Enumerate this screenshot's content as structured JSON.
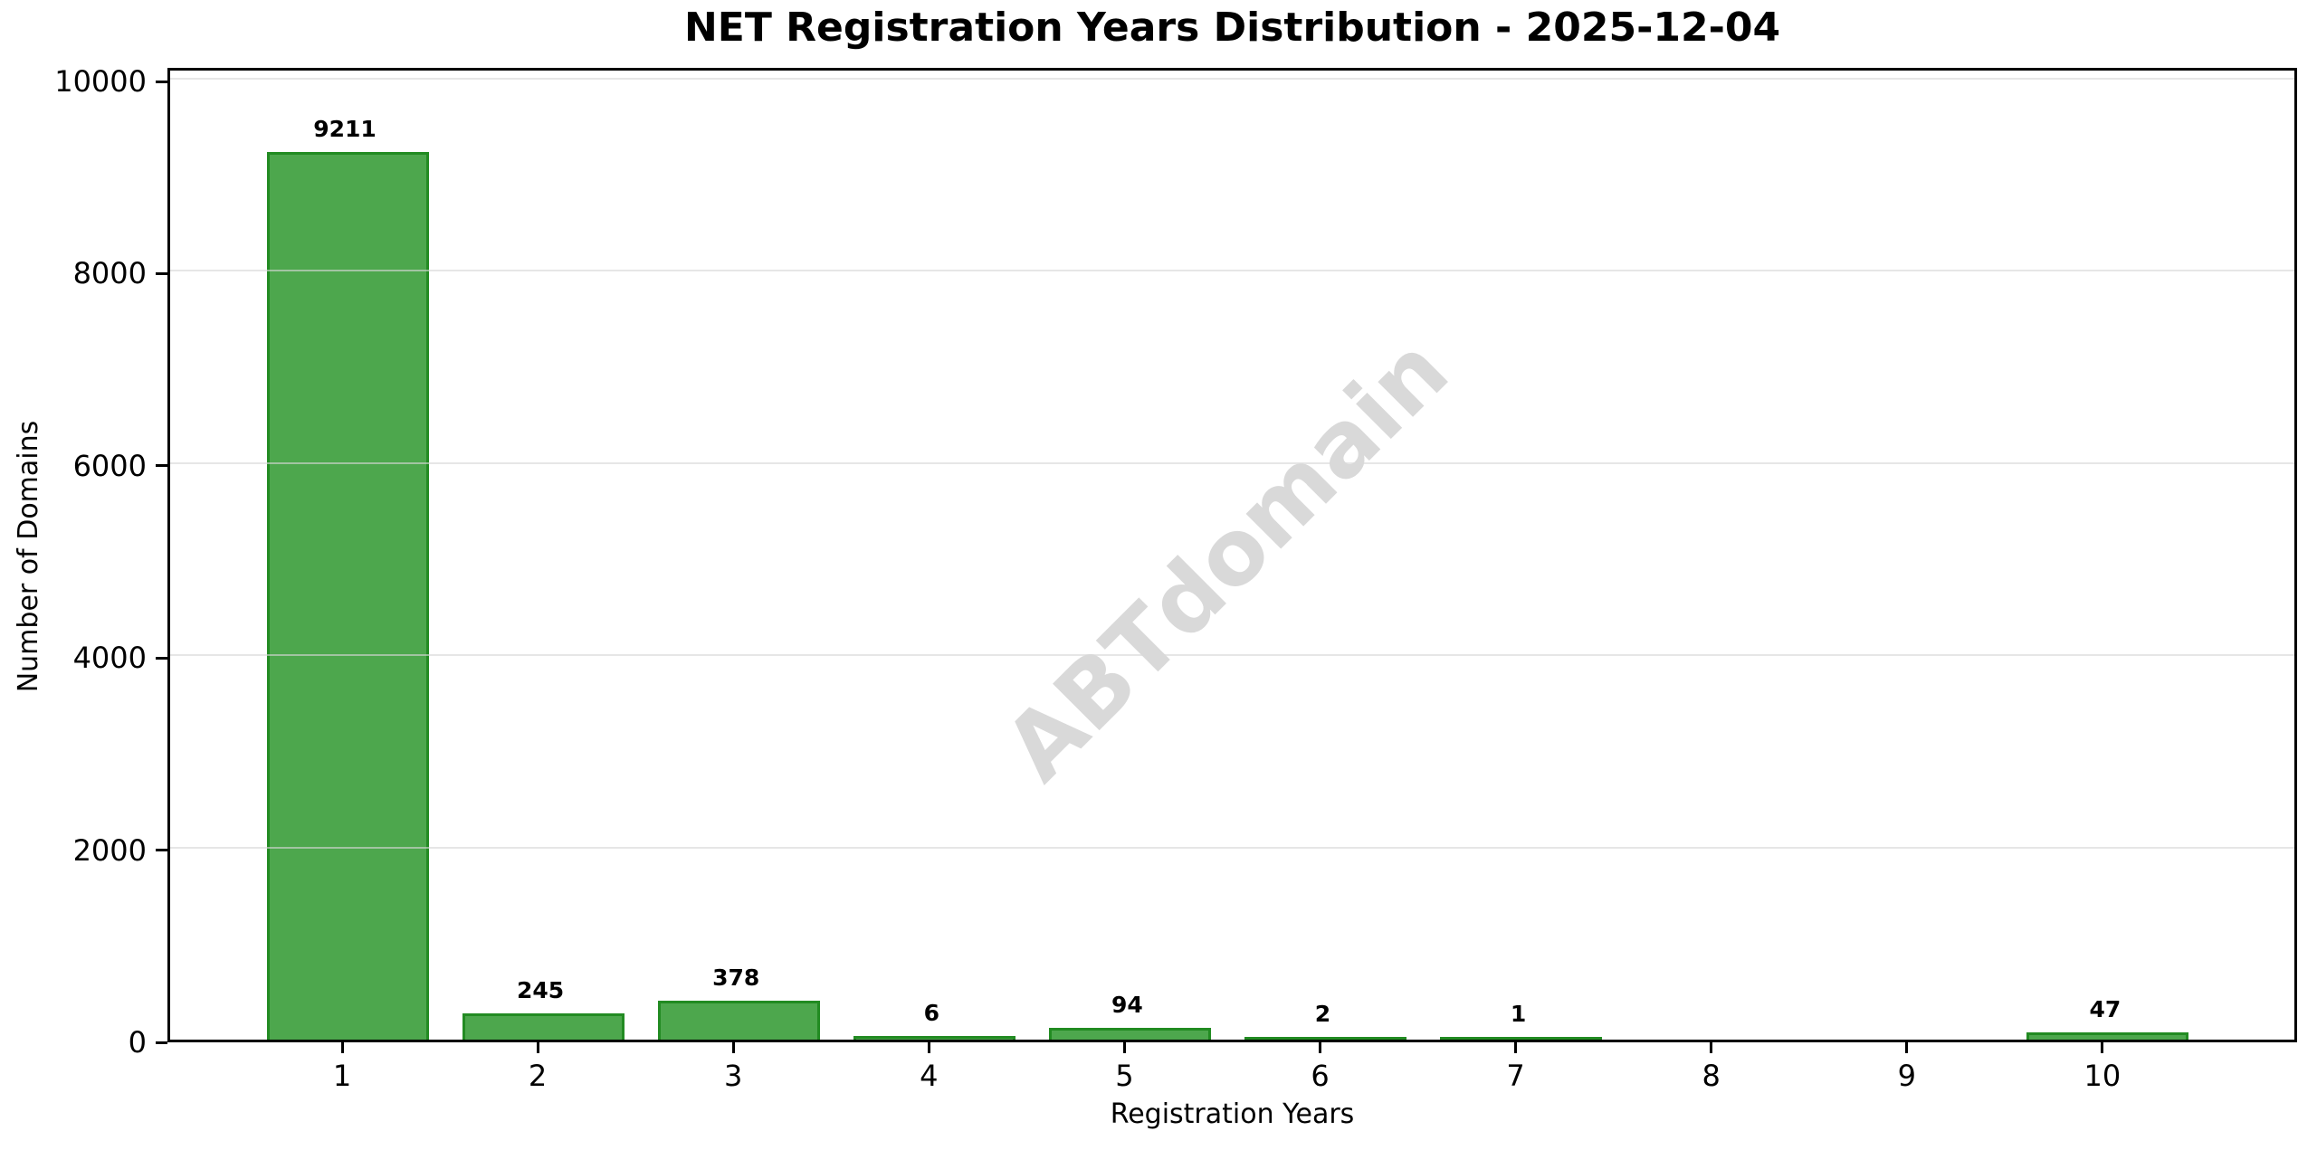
{
  "title": "NET Registration Years Distribution - 2025-12-04",
  "watermark": "ABTdomain",
  "chart_data": {
    "type": "bar",
    "title": "NET Registration Years Distribution - 2025-12-04",
    "xlabel": "Registration Years",
    "ylabel": "Number of Domains",
    "categories": [
      "1",
      "2",
      "3",
      "4",
      "5",
      "6",
      "7",
      "8",
      "9",
      "10"
    ],
    "values": [
      9211,
      245,
      378,
      6,
      94,
      2,
      1,
      0,
      0,
      47
    ],
    "bar_value_labels": [
      "9211",
      "245",
      "378",
      "6",
      "94",
      "2",
      "1",
      "",
      "",
      "47"
    ],
    "yticks": [
      0,
      2000,
      4000,
      6000,
      8000,
      10000
    ],
    "ytick_labels": [
      "0",
      "2000",
      "4000",
      "6000",
      "8000",
      "10000"
    ],
    "ylim": [
      0,
      10132
    ],
    "grid": "horizontal gridlines at y ticks, drawn above bars",
    "legend": "none",
    "zero_value_bars_hidden": true,
    "colors": {
      "bar_fill": "#4DA74D",
      "bar_edge": "#228B22",
      "grid": "#E4E4E4",
      "watermark": "#D9D9D9",
      "text": "#000000",
      "background": "#FFFFFF"
    }
  }
}
